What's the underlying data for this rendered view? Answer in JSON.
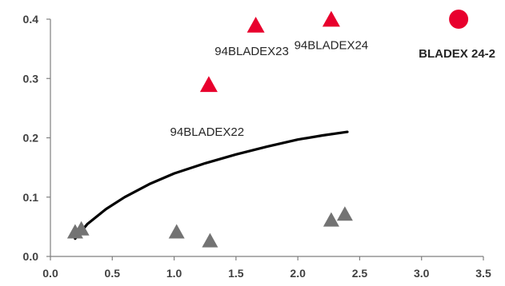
{
  "chart_data": {
    "type": "scatter",
    "title": "",
    "xlabel": "",
    "ylabel": "",
    "xlim": [
      0,
      3.5
    ],
    "ylim": [
      0,
      0.4
    ],
    "x_ticks": [
      "0.0",
      "0.5",
      "1.0",
      "1.5",
      "2.0",
      "2.5",
      "3.0",
      "3.5"
    ],
    "y_ticks": [
      "0.0",
      "0.1",
      "0.2",
      "0.3",
      "0.4"
    ],
    "grid": false,
    "legend": "none",
    "colors": {
      "highlight": "#e8002d",
      "gray": "#737373",
      "curve": "#000000"
    },
    "gray_triangles": [
      {
        "x": 0.2,
        "y": 0.04
      },
      {
        "x": 0.25,
        "y": 0.045
      },
      {
        "x": 1.02,
        "y": 0.04
      },
      {
        "x": 1.29,
        "y": 0.025
      },
      {
        "x": 2.27,
        "y": 0.06
      },
      {
        "x": 2.38,
        "y": 0.07
      }
    ],
    "red_triangles": [
      {
        "x": 1.28,
        "y": 0.288,
        "label": "94BLADEX22"
      },
      {
        "x": 1.66,
        "y": 0.388,
        "label": "94BLADEX23"
      },
      {
        "x": 2.27,
        "y": 0.398,
        "label": "94BLADEX24"
      }
    ],
    "red_circle": {
      "x": 3.3,
      "y": 0.4,
      "label": "BLADEX 24-2"
    },
    "curve": [
      {
        "x": 0.2,
        "y": 0.03
      },
      {
        "x": 0.3,
        "y": 0.055
      },
      {
        "x": 0.45,
        "y": 0.08
      },
      {
        "x": 0.6,
        "y": 0.1
      },
      {
        "x": 0.8,
        "y": 0.122
      },
      {
        "x": 1.0,
        "y": 0.14
      },
      {
        "x": 1.25,
        "y": 0.157
      },
      {
        "x": 1.5,
        "y": 0.172
      },
      {
        "x": 1.75,
        "y": 0.185
      },
      {
        "x": 2.0,
        "y": 0.197
      },
      {
        "x": 2.2,
        "y": 0.204
      },
      {
        "x": 2.4,
        "y": 0.21
      }
    ]
  }
}
